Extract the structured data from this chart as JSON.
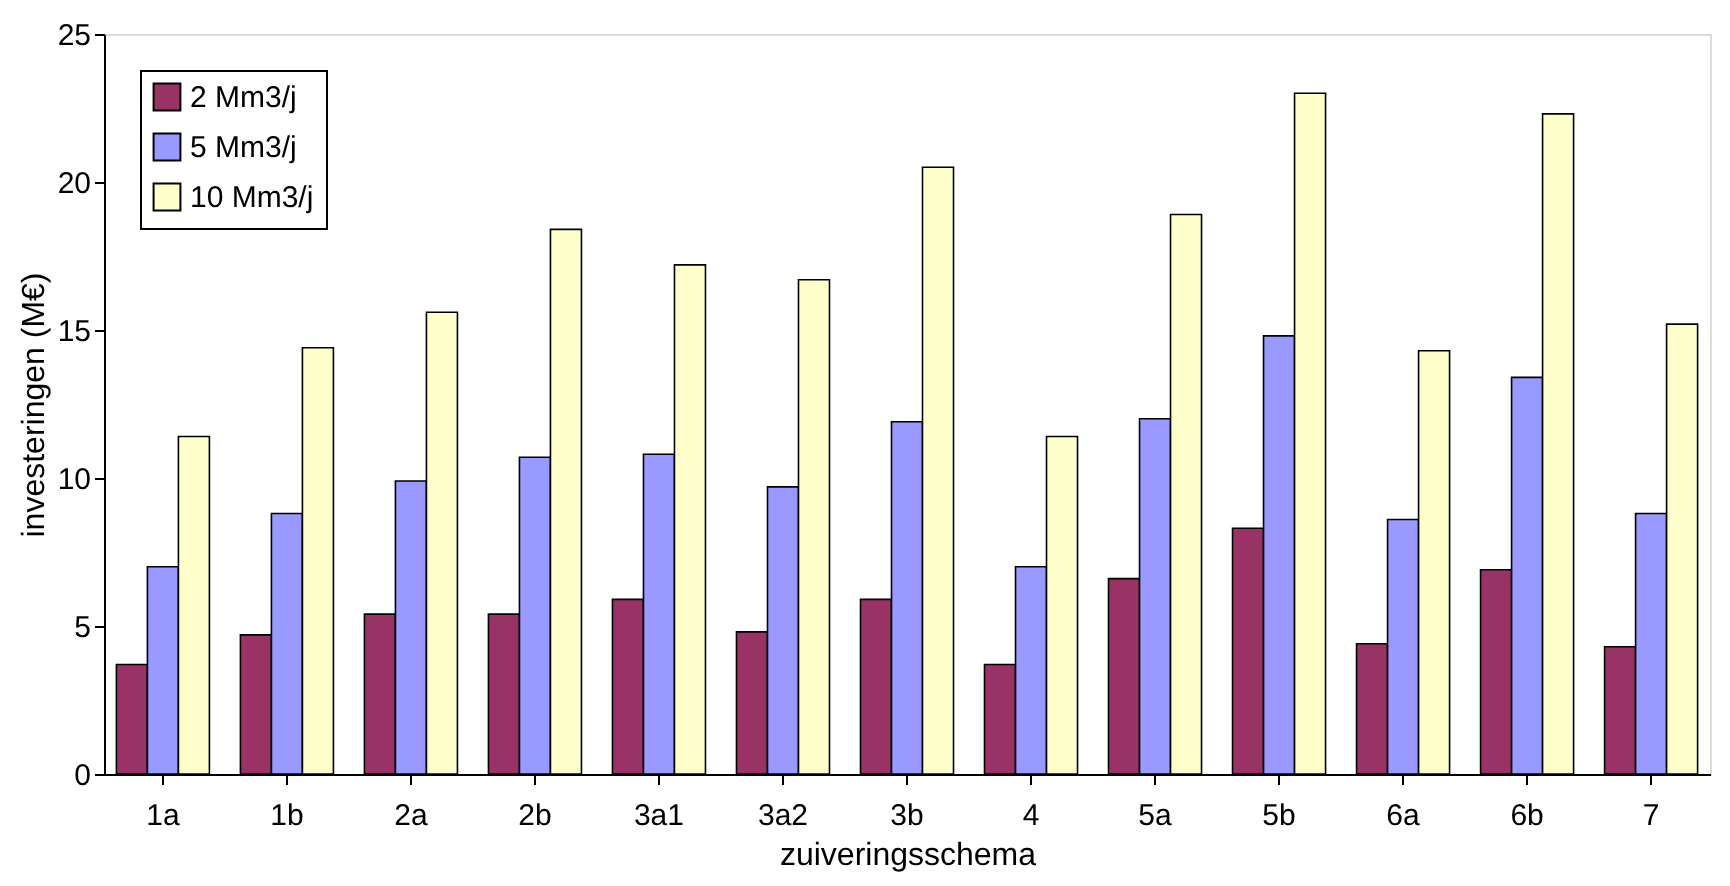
{
  "chart_data": {
    "type": "bar",
    "xlabel": "zuiveringsschema",
    "ylabel": "investeringen (M€)",
    "categories": [
      "1a",
      "1b",
      "2a",
      "2b",
      "3a1",
      "3a2",
      "3b",
      "4",
      "5a",
      "5b",
      "6a",
      "6b",
      "7"
    ],
    "series": [
      {
        "name": "2 Mm3/j",
        "color": "#993366",
        "values": [
          3.7,
          4.7,
          5.4,
          5.4,
          5.9,
          4.8,
          5.9,
          3.7,
          6.6,
          8.3,
          4.4,
          6.9,
          4.3
        ]
      },
      {
        "name": "5 Mm3/j",
        "color": "#9999ff",
        "values": [
          7.0,
          8.8,
          9.9,
          10.7,
          10.8,
          9.7,
          11.9,
          7.0,
          12.0,
          14.8,
          8.6,
          13.4,
          8.8
        ]
      },
      {
        "name": "10 Mm3/j",
        "color": "#ffffcc",
        "values": [
          11.4,
          14.4,
          15.6,
          18.4,
          17.2,
          16.7,
          20.5,
          11.4,
          18.9,
          23.0,
          14.3,
          22.3,
          15.2
        ]
      }
    ],
    "ylim": [
      0,
      25
    ],
    "yticks": [
      0,
      5,
      10,
      15,
      20,
      25
    ],
    "grid": false,
    "legend": "top left"
  }
}
